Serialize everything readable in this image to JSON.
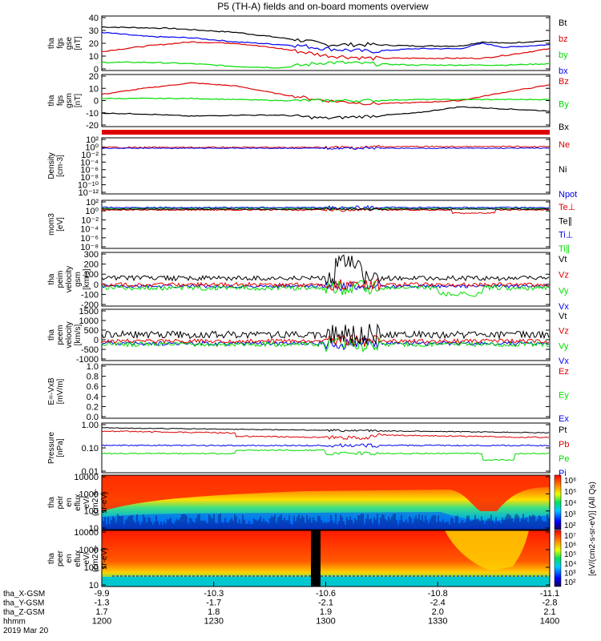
{
  "title": "P5 (TH-A) fields and on-board moments overview",
  "colors": {
    "black": "#000000",
    "red": "#dd0000",
    "blue": "#0000ee",
    "green": "#00dd00"
  },
  "chart_data": [
    {
      "type": "line",
      "id": "fgs_gse",
      "ylabel": [
        "tha",
        "fgs",
        "gse",
        "[nT]"
      ],
      "ylim": [
        0,
        40
      ],
      "yticks": [
        "40",
        "30",
        "20",
        "10",
        "0"
      ],
      "legend": [
        {
          "name": "Bt",
          "color": "black"
        },
        {
          "name": "bz",
          "color": "red"
        },
        {
          "name": "by",
          "color": "green"
        },
        {
          "name": "bx",
          "color": "blue"
        }
      ],
      "series": [
        {
          "name": "Bt",
          "color": "black",
          "points": [
            [
              0,
              32
            ],
            [
              0.15,
              31
            ],
            [
              0.3,
              28
            ],
            [
              0.45,
              22
            ],
            [
              0.5,
              19
            ],
            [
              0.6,
              19
            ],
            [
              0.7,
              18
            ],
            [
              0.8,
              18
            ],
            [
              0.85,
              21
            ],
            [
              0.9,
              20
            ],
            [
              1,
              22
            ]
          ]
        },
        {
          "name": "bx",
          "color": "blue",
          "points": [
            [
              0,
              28
            ],
            [
              0.1,
              25
            ],
            [
              0.2,
              24
            ],
            [
              0.3,
              21
            ],
            [
              0.45,
              18
            ],
            [
              0.5,
              16
            ],
            [
              0.6,
              14
            ],
            [
              0.7,
              16
            ],
            [
              0.8,
              16
            ],
            [
              0.85,
              20
            ],
            [
              0.9,
              17
            ],
            [
              1,
              19
            ]
          ]
        },
        {
          "name": "bz",
          "color": "red",
          "points": [
            [
              0,
              14
            ],
            [
              0.1,
              18
            ],
            [
              0.2,
              21
            ],
            [
              0.3,
              20
            ],
            [
              0.4,
              16
            ],
            [
              0.5,
              11
            ],
            [
              0.6,
              9
            ],
            [
              0.75,
              9
            ],
            [
              0.85,
              9
            ],
            [
              0.92,
              12
            ],
            [
              1,
              16
            ]
          ]
        },
        {
          "name": "by",
          "color": "green",
          "points": [
            [
              0,
              6
            ],
            [
              0.1,
              6
            ],
            [
              0.2,
              5
            ],
            [
              0.3,
              3
            ],
            [
              0.4,
              2
            ],
            [
              0.5,
              6
            ],
            [
              0.6,
              5
            ],
            [
              0.7,
              4
            ],
            [
              0.8,
              4
            ],
            [
              0.9,
              4
            ],
            [
              1,
              5
            ]
          ]
        }
      ]
    },
    {
      "type": "line",
      "id": "fgs_gsm",
      "ylabel": [
        "tha",
        "fgs",
        "gsm",
        "[nT]"
      ],
      "ylim": [
        -25,
        25
      ],
      "yticks": [
        "20",
        "10",
        "0",
        "-10",
        "-20"
      ],
      "legend": [
        {
          "name": "Bz",
          "color": "red"
        },
        {
          "name": "By",
          "color": "green"
        },
        {
          "name": "Bx",
          "color": "black"
        }
      ],
      "series": [
        {
          "name": "Bz",
          "color": "red",
          "points": [
            [
              0,
              6
            ],
            [
              0.1,
              12
            ],
            [
              0.2,
              17
            ],
            [
              0.3,
              14
            ],
            [
              0.4,
              6
            ],
            [
              0.5,
              0
            ],
            [
              0.6,
              -3
            ],
            [
              0.7,
              -2
            ],
            [
              0.8,
              0
            ],
            [
              0.9,
              8
            ],
            [
              1,
              15
            ]
          ]
        },
        {
          "name": "By",
          "color": "green",
          "points": [
            [
              0,
              2
            ],
            [
              0.1,
              2
            ],
            [
              0.2,
              2
            ],
            [
              0.3,
              1
            ],
            [
              0.4,
              0
            ],
            [
              0.5,
              0
            ],
            [
              0.6,
              0
            ],
            [
              0.7,
              1
            ],
            [
              0.8,
              1
            ],
            [
              0.9,
              1
            ],
            [
              1,
              1
            ]
          ]
        },
        {
          "name": "Bx",
          "color": "black",
          "points": [
            [
              0,
              -12
            ],
            [
              0.1,
              -13
            ],
            [
              0.2,
              -15
            ],
            [
              0.3,
              -14
            ],
            [
              0.4,
              -14
            ],
            [
              0.5,
              -17
            ],
            [
              0.6,
              -15
            ],
            [
              0.7,
              -12
            ],
            [
              0.8,
              -6
            ],
            [
              0.9,
              -8
            ],
            [
              1,
              -10
            ]
          ]
        }
      ]
    },
    {
      "type": "line",
      "id": "density",
      "ylabel": [
        "Density",
        "[cm-3]"
      ],
      "yscale": "log",
      "yticks": [
        "10²",
        "10⁰",
        "10⁻²",
        "10⁻⁴",
        "10⁻⁶",
        "10⁻⁸",
        "10⁻¹⁰",
        "10⁻¹²"
      ],
      "legend": [
        {
          "name": "Ne",
          "color": "red"
        },
        {
          "name": "Ni",
          "color": "black"
        },
        {
          "name": "Npot",
          "color": "blue"
        }
      ]
    },
    {
      "type": "line",
      "id": "temperature",
      "ylabel": [
        "mom3",
        "[eV]"
      ],
      "yscale": "log",
      "yticks": [
        "10²",
        "10⁰",
        "10⁻²",
        "10⁻⁴",
        "10⁻⁶",
        "10⁻⁸"
      ],
      "legend": [
        {
          "name": "Te⊥",
          "color": "red"
        },
        {
          "name": "Te∥",
          "color": "black"
        },
        {
          "name": "Ti⊥",
          "color": "blue"
        },
        {
          "name": "Ti∥",
          "color": "green"
        }
      ]
    },
    {
      "type": "line",
      "id": "peim_velocity",
      "ylabel": [
        "tha",
        "peim",
        "velocity",
        "gsm",
        "[km/s]"
      ],
      "ylim": [
        -200,
        300
      ],
      "yticks": [
        "300",
        "200",
        "100",
        "0",
        "-100",
        "-200"
      ],
      "legend": [
        {
          "name": "Vt",
          "color": "black"
        },
        {
          "name": "Vz",
          "color": "red"
        },
        {
          "name": "Vy",
          "color": "green"
        },
        {
          "name": "Vx",
          "color": "blue"
        }
      ]
    },
    {
      "type": "line",
      "id": "peem_velocity",
      "ylabel": [
        "tha",
        "peem",
        "velocity",
        "[km/s]"
      ],
      "ylim": [
        -1000,
        1500
      ],
      "yticks": [
        "1500",
        "1000",
        "500",
        "0",
        "-500",
        "-1000"
      ],
      "legend": [
        {
          "name": "Vt",
          "color": "black"
        },
        {
          "name": "Vz",
          "color": "red"
        },
        {
          "name": "Vy",
          "color": "green"
        },
        {
          "name": "Vx",
          "color": "blue"
        }
      ]
    },
    {
      "type": "line",
      "id": "efield",
      "ylabel": [
        "E=-VxB",
        "[mV/m]"
      ],
      "ylim": [
        0,
        1
      ],
      "yticks": [
        "1.0",
        "0.8",
        "0.6",
        "0.4",
        "0.2",
        "0.0"
      ],
      "legend": [
        {
          "name": "Ez",
          "color": "red"
        },
        {
          "name": "Ey",
          "color": "green"
        },
        {
          "name": "Ex",
          "color": "blue"
        }
      ]
    },
    {
      "type": "line",
      "id": "pressure",
      "ylabel": [
        "Pressure",
        "[nPa]"
      ],
      "yscale": "log",
      "yticks": [
        "1.00",
        "0.10",
        "0.01"
      ],
      "legend": [
        {
          "name": "Pt",
          "color": "black"
        },
        {
          "name": "Pb",
          "color": "red"
        },
        {
          "name": "Pe",
          "color": "green"
        },
        {
          "name": "Pi",
          "color": "blue"
        }
      ]
    },
    {
      "type": "heatmap",
      "id": "peir_spec",
      "ylabel": [
        "tha",
        "peir",
        "en",
        "eflux",
        "eV/",
        "(cm2-s-",
        "sr-eV)"
      ],
      "yticks": [
        "10000",
        "1000",
        "100",
        "10"
      ]
    },
    {
      "type": "heatmap",
      "id": "peer_spec",
      "ylabel": [
        "tha",
        "peer",
        "en",
        "eflux",
        "eV/",
        "(cm2-s-",
        "sr-eV)"
      ],
      "yticks": [
        "10000",
        "1000",
        "100",
        "10"
      ]
    }
  ],
  "colorbar": {
    "label": "[eV/(cm2-s-sr-eV)] (All Qs)",
    "ticks_top": [
      "10⁶",
      "10⁵",
      "10⁴",
      "10³",
      "10²"
    ],
    "ticks_bottom": [
      "10⁷",
      "10⁶",
      "10⁵",
      "10⁴",
      "10³",
      "10²"
    ]
  },
  "xaxis": {
    "rows": [
      {
        "label": "tha_X-GSM",
        "values": [
          "-9.9",
          "-10.3",
          "-10.6",
          "-10.8",
          "-11.1"
        ]
      },
      {
        "label": "tha_Y-GSM",
        "values": [
          "-1.3",
          "-1.7",
          "-2.1",
          "-2.4",
          "-2.8"
        ]
      },
      {
        "label": "tha_Z-GSM",
        "values": [
          "1.7",
          "1.8",
          "1.9",
          "2.0",
          "2.1"
        ]
      },
      {
        "label": "hhmm",
        "values": [
          "1200",
          "1230",
          "1300",
          "1330",
          "1400"
        ]
      }
    ],
    "date": "2019 Mar 20"
  }
}
